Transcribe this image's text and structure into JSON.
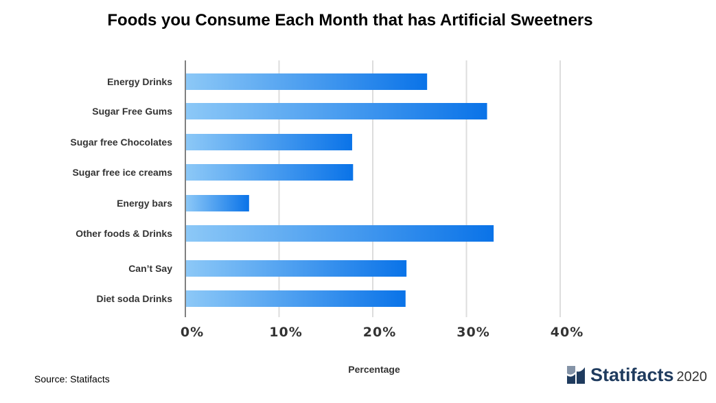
{
  "chart_data": {
    "type": "bar",
    "orientation": "horizontal",
    "title": "Foods you Consume Each Month that has Artificial Sweetners",
    "xlabel": "Percentage",
    "ylabel": "",
    "categories": [
      "Energy Drinks",
      "Sugar Free Gums",
      "Sugar free Chocolates",
      "Sugar free ice creams",
      "Energy bars",
      "Other foods & Drinks",
      "Can’t Say",
      "Diet soda Drinks"
    ],
    "values": [
      25.8,
      32.2,
      17.8,
      17.9,
      6.8,
      32.9,
      23.6,
      23.5
    ],
    "xlim": [
      0,
      40
    ],
    "xticks": [
      "0%",
      "10%",
      "20%",
      "30%",
      "40%"
    ],
    "grid": "vertical",
    "legend": "none",
    "colors": {
      "bar_light": "#8cc8f7",
      "bar_dark": "#0a73e8",
      "grid": "#dddddd",
      "axis": "#555555"
    }
  },
  "source": "Source: Statifacts",
  "brand": {
    "name": "Statifacts",
    "year": "2020",
    "color": "#1f3b5e"
  }
}
